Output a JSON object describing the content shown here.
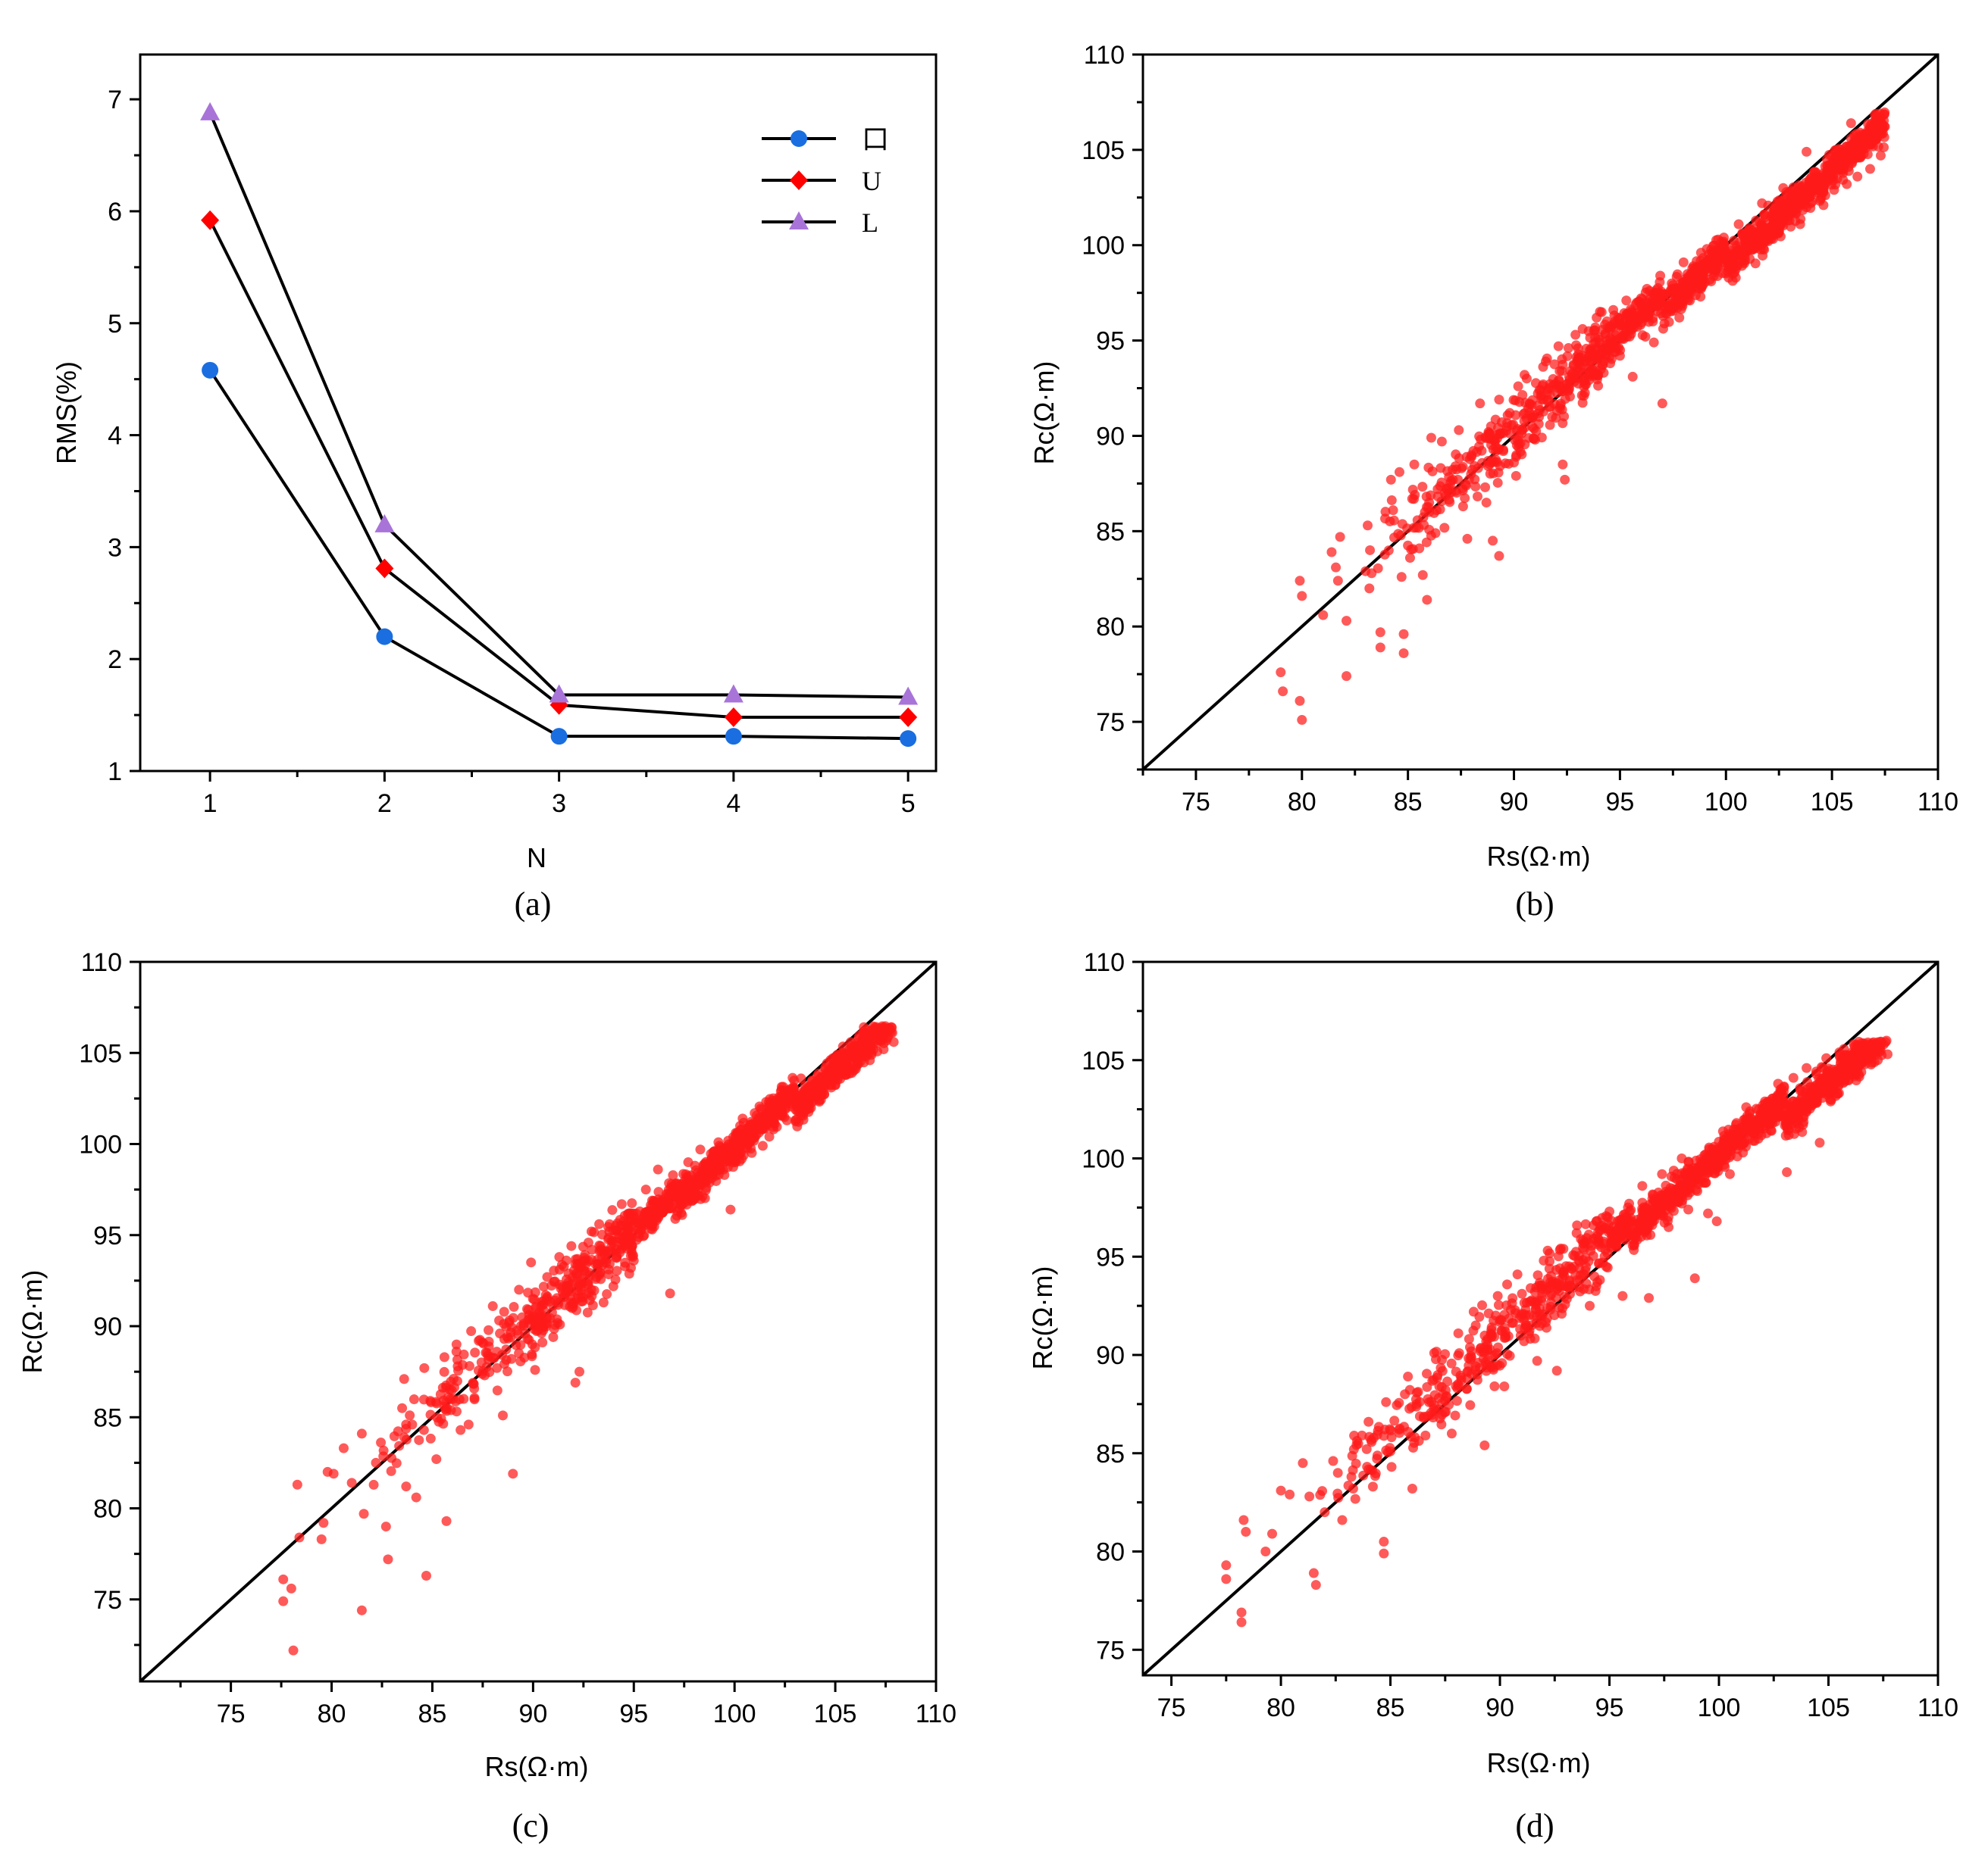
{
  "chart_data": [
    {
      "id": "a",
      "type": "line",
      "caption": "(a)",
      "xlabel": "N",
      "ylabel": "RMS(%)",
      "x": [
        1,
        2,
        3,
        4,
        5
      ],
      "xlim": [
        0.6,
        5.16
      ],
      "ylim": [
        1,
        7.4
      ],
      "xticks": [
        1,
        2,
        3,
        4,
        5
      ],
      "yticks": [
        1,
        2,
        3,
        4,
        5,
        6,
        7
      ],
      "legend_position": "top-right",
      "series": [
        {
          "name": "口",
          "marker": "circle",
          "color": "#1a6ee0",
          "values": [
            4.58,
            2.2,
            1.31,
            1.31,
            1.29
          ]
        },
        {
          "name": "U",
          "marker": "diamond",
          "color": "#ff0000",
          "values": [
            5.92,
            2.81,
            1.59,
            1.48,
            1.48
          ]
        },
        {
          "name": "L",
          "marker": "triangle",
          "color": "#a874d8",
          "values": [
            6.88,
            3.2,
            1.68,
            1.68,
            1.66
          ]
        }
      ]
    },
    {
      "id": "b",
      "type": "scatter",
      "caption": "(b)",
      "xlabel": "Rs(Ω·m)",
      "ylabel": "Rc(Ω·m)",
      "xlim": [
        72.5,
        110
      ],
      "ylim": [
        72.5,
        110
      ],
      "xticks": [
        75,
        80,
        85,
        90,
        95,
        100,
        105,
        110
      ],
      "yticks": [
        75,
        80,
        85,
        90,
        95,
        100,
        105,
        110
      ],
      "reference_line": "y = x",
      "point_color": "#ff1a1a",
      "x_range": [
        79,
        107.5
      ],
      "y_range": [
        75,
        107
      ],
      "points": [
        [
          79.0,
          77.6
        ],
        [
          79.1,
          76.6
        ],
        [
          79.9,
          82.4
        ],
        [
          80.0,
          81.6
        ],
        [
          79.9,
          76.1
        ],
        [
          80.0,
          75.1
        ],
        [
          81.0,
          80.6
        ],
        [
          81.4,
          83.9
        ],
        [
          81.6,
          83.1
        ],
        [
          81.7,
          82.4
        ],
        [
          81.8,
          84.7
        ],
        [
          82.1,
          77.4
        ],
        [
          82.1,
          80.3
        ],
        [
          83.0,
          82.9
        ],
        [
          83.1,
          85.3
        ],
        [
          83.7,
          79.7
        ],
        [
          83.7,
          78.9
        ],
        [
          84.2,
          87.7
        ],
        [
          84.3,
          86.1
        ],
        [
          84.6,
          88.1
        ],
        [
          84.7,
          82.6
        ],
        [
          84.8,
          79.6
        ],
        [
          84.8,
          78.6
        ],
        [
          85.1,
          83.6
        ],
        [
          85.2,
          86.7
        ],
        [
          85.3,
          88.5
        ],
        [
          85.7,
          82.7
        ],
        [
          85.8,
          86.0
        ],
        [
          85.9,
          81.4
        ],
        [
          86.0,
          86.5
        ],
        [
          86.1,
          89.9
        ],
        [
          86.3,
          84.9
        ],
        [
          86.6,
          89.7
        ],
        [
          87.0,
          87.5
        ],
        [
          87.4,
          90.3
        ],
        [
          87.6,
          86.3
        ],
        [
          87.8,
          84.6
        ],
        [
          88.0,
          88.9
        ],
        [
          88.4,
          91.7
        ],
        [
          88.7,
          86.5
        ],
        [
          88.8,
          90.2
        ],
        [
          89.0,
          84.5
        ],
        [
          89.3,
          91.9
        ],
        [
          89.3,
          83.7
        ],
        [
          89.5,
          89.2
        ],
        [
          89.8,
          91.2
        ],
        [
          90.0,
          88.6
        ],
        [
          90.1,
          87.9
        ],
        [
          90.2,
          92.6
        ],
        [
          90.4,
          90.3
        ],
        [
          90.5,
          93.2
        ],
        [
          90.9,
          91.1
        ],
        [
          91.0,
          89.8
        ],
        [
          91.2,
          92.4
        ],
        [
          91.5,
          93.9
        ],
        [
          91.8,
          91.0
        ],
        [
          92.1,
          94.7
        ],
        [
          92.3,
          88.5
        ],
        [
          92.4,
          87.7
        ],
        [
          92.6,
          93.1
        ],
        [
          92.9,
          95.3
        ],
        [
          93.3,
          92.1
        ],
        [
          93.5,
          94.1
        ],
        [
          93.9,
          96.2
        ],
        [
          94.1,
          93.5
        ],
        [
          94.4,
          95.0
        ],
        [
          94.8,
          95.9
        ],
        [
          95.0,
          94.2
        ],
        [
          95.3,
          97.1
        ],
        [
          95.5,
          95.6
        ],
        [
          95.6,
          93.1
        ],
        [
          95.9,
          96.5
        ],
        [
          96.2,
          95.2
        ],
        [
          96.4,
          97.6
        ],
        [
          96.6,
          94.9
        ],
        [
          96.9,
          98.4
        ],
        [
          97.0,
          91.7
        ],
        [
          97.2,
          96.4
        ],
        [
          97.5,
          97.9
        ],
        [
          97.8,
          96.2
        ],
        [
          98.0,
          99.1
        ],
        [
          98.3,
          97.1
        ],
        [
          98.6,
          98.6
        ],
        [
          98.8,
          97.3
        ],
        [
          99.1,
          99.8
        ],
        [
          99.3,
          98.1
        ],
        [
          99.6,
          98.9
        ],
        [
          99.9,
          100.4
        ],
        [
          100.1,
          98.6
        ],
        [
          100.4,
          99.5
        ],
        [
          100.6,
          101.1
        ],
        [
          100.9,
          99.2
        ],
        [
          101.2,
          100.8
        ],
        [
          101.4,
          99.9
        ],
        [
          101.7,
          102.2
        ],
        [
          102.0,
          100.4
        ],
        [
          102.2,
          101.6
        ],
        [
          102.5,
          100.7
        ],
        [
          102.7,
          103.0
        ],
        [
          103.0,
          101.3
        ],
        [
          103.3,
          102.2
        ],
        [
          103.5,
          101.1
        ],
        [
          103.8,
          104.9
        ],
        [
          104.0,
          102.2
        ],
        [
          104.3,
          103.4
        ],
        [
          104.6,
          102.1
        ],
        [
          104.8,
          103.8
        ],
        [
          105.1,
          102.9
        ],
        [
          105.4,
          104.5
        ],
        [
          105.7,
          103.2
        ],
        [
          105.9,
          106.4
        ],
        [
          106.2,
          103.6
        ],
        [
          106.5,
          104.8
        ],
        [
          106.8,
          104.0
        ],
        [
          107.1,
          105.6
        ],
        [
          107.3,
          104.7
        ]
      ]
    },
    {
      "id": "c",
      "type": "scatter",
      "caption": "(c)",
      "xlabel": "Rs(Ω·m)",
      "ylabel": "Rc(Ω·m)",
      "xlim": [
        70.5,
        110
      ],
      "ylim": [
        70.5,
        110
      ],
      "xticks": [
        75,
        80,
        85,
        90,
        95,
        100,
        105,
        110
      ],
      "yticks": [
        75,
        80,
        85,
        90,
        95,
        100,
        105,
        110
      ],
      "reference_line": "y = x",
      "point_color": "#ff1a1a",
      "x_range": [
        77.5,
        108
      ],
      "y_range": [
        72,
        106.5
      ],
      "points": [
        [
          77.6,
          76.1
        ],
        [
          77.6,
          74.9
        ],
        [
          78.0,
          75.6
        ],
        [
          78.1,
          72.2
        ],
        [
          78.3,
          81.3
        ],
        [
          78.4,
          78.4
        ],
        [
          79.5,
          78.3
        ],
        [
          79.6,
          79.2
        ],
        [
          79.8,
          82.0
        ],
        [
          80.1,
          81.9
        ],
        [
          80.6,
          83.3
        ],
        [
          81.0,
          81.4
        ],
        [
          81.5,
          84.1
        ],
        [
          81.5,
          74.4
        ],
        [
          81.6,
          79.7
        ],
        [
          82.2,
          82.5
        ],
        [
          82.7,
          79.0
        ],
        [
          82.8,
          77.2
        ],
        [
          83.5,
          85.5
        ],
        [
          83.6,
          87.1
        ],
        [
          83.7,
          81.2
        ],
        [
          84.0,
          84.6
        ],
        [
          84.2,
          80.6
        ],
        [
          84.6,
          87.7
        ],
        [
          84.7,
          76.3
        ],
        [
          84.9,
          85.9
        ],
        [
          85.2,
          82.7
        ],
        [
          85.6,
          88.3
        ],
        [
          85.7,
          79.3
        ],
        [
          85.9,
          86.0
        ],
        [
          86.2,
          89.0
        ],
        [
          86.4,
          84.3
        ],
        [
          86.8,
          84.6
        ],
        [
          87.3,
          89.2
        ],
        [
          87.6,
          87.3
        ],
        [
          88.0,
          91.1
        ],
        [
          88.2,
          88.6
        ],
        [
          88.5,
          85.1
        ],
        [
          88.8,
          90.2
        ],
        [
          89.0,
          81.9
        ],
        [
          89.3,
          92.0
        ],
        [
          89.6,
          89.6
        ],
        [
          89.9,
          93.5
        ],
        [
          90.1,
          87.6
        ],
        [
          90.4,
          91.1
        ],
        [
          90.7,
          92.7
        ],
        [
          91.0,
          89.4
        ],
        [
          91.3,
          93.8
        ],
        [
          91.5,
          91.6
        ],
        [
          91.9,
          94.4
        ],
        [
          92.1,
          86.9
        ],
        [
          92.3,
          87.5
        ],
        [
          92.6,
          92.9
        ],
        [
          92.9,
          95.2
        ],
        [
          93.2,
          93.4
        ],
        [
          93.5,
          91.3
        ],
        [
          93.8,
          95.6
        ],
        [
          94.1,
          94.2
        ],
        [
          94.4,
          96.7
        ],
        [
          94.7,
          95.1
        ],
        [
          95.0,
          93.6
        ],
        [
          95.3,
          96.3
        ],
        [
          95.6,
          97.5
        ],
        [
          95.9,
          95.5
        ],
        [
          96.2,
          98.6
        ],
        [
          96.5,
          96.7
        ],
        [
          96.8,
          91.8
        ],
        [
          97.1,
          97.8
        ],
        [
          97.4,
          96.1
        ],
        [
          97.7,
          99.0
        ],
        [
          98.0,
          97.1
        ],
        [
          98.3,
          99.7
        ],
        [
          98.6,
          97.6
        ],
        [
          98.9,
          98.8
        ],
        [
          99.2,
          100.1
        ],
        [
          99.5,
          98.3
        ],
        [
          99.8,
          96.4
        ],
        [
          100.1,
          99.6
        ],
        [
          100.4,
          101.4
        ],
        [
          100.7,
          100.1
        ],
        [
          101.0,
          101.7
        ],
        [
          101.4,
          99.9
        ],
        [
          101.7,
          102.3
        ],
        [
          102.0,
          101.1
        ],
        [
          102.3,
          102.9
        ],
        [
          102.6,
          101.3
        ],
        [
          102.9,
          102.4
        ],
        [
          103.3,
          103.6
        ],
        [
          103.6,
          101.9
        ],
        [
          103.9,
          103.2
        ],
        [
          104.2,
          102.4
        ],
        [
          104.5,
          104.2
        ],
        [
          104.8,
          103.1
        ],
        [
          105.1,
          104.9
        ],
        [
          105.5,
          103.8
        ],
        [
          105.8,
          105.4
        ],
        [
          106.1,
          104.4
        ],
        [
          106.4,
          105.9
        ],
        [
          106.8,
          104.9
        ],
        [
          107.1,
          106.1
        ],
        [
          107.4,
          105.2
        ],
        [
          107.7,
          106.3
        ],
        [
          107.9,
          105.6
        ]
      ]
    },
    {
      "id": "d",
      "type": "scatter",
      "caption": "(d)",
      "xlabel": "Rs(Ω·m)",
      "ylabel": "Rc(Ω·m)",
      "xlim": [
        73.7,
        110
      ],
      "ylim": [
        73.7,
        110
      ],
      "xticks": [
        75,
        80,
        85,
        90,
        95,
        100,
        105,
        110
      ],
      "yticks": [
        75,
        80,
        85,
        90,
        95,
        100,
        105,
        110
      ],
      "reference_line": "y = x",
      "point_color": "#ff1a1a",
      "x_range": [
        77.5,
        108
      ],
      "y_range": [
        76.5,
        106
      ],
      "points": [
        [
          77.5,
          79.3
        ],
        [
          77.5,
          78.6
        ],
        [
          78.2,
          76.9
        ],
        [
          78.2,
          76.4
        ],
        [
          78.3,
          81.6
        ],
        [
          78.4,
          81.0
        ],
        [
          79.3,
          80.0
        ],
        [
          79.6,
          80.9
        ],
        [
          80.0,
          83.1
        ],
        [
          80.4,
          82.9
        ],
        [
          81.0,
          84.5
        ],
        [
          81.3,
          82.8
        ],
        [
          81.5,
          78.9
        ],
        [
          81.6,
          78.3
        ],
        [
          82.0,
          82.0
        ],
        [
          82.6,
          84.0
        ],
        [
          82.8,
          81.6
        ],
        [
          83.3,
          83.2
        ],
        [
          83.7,
          85.9
        ],
        [
          84.0,
          86.6
        ],
        [
          84.2,
          83.3
        ],
        [
          84.7,
          80.5
        ],
        [
          84.7,
          79.9
        ],
        [
          84.8,
          87.6
        ],
        [
          85.0,
          85.1
        ],
        [
          85.4,
          86.2
        ],
        [
          85.8,
          88.9
        ],
        [
          86.0,
          83.2
        ],
        [
          86.2,
          87.5
        ],
        [
          86.6,
          85.9
        ],
        [
          87.0,
          90.1
        ],
        [
          87.4,
          88.0
        ],
        [
          87.8,
          86.0
        ],
        [
          88.1,
          91.1
        ],
        [
          88.5,
          88.8
        ],
        [
          88.8,
          92.2
        ],
        [
          89.0,
          89.6
        ],
        [
          89.3,
          85.4
        ],
        [
          89.6,
          90.9
        ],
        [
          89.9,
          93.0
        ],
        [
          90.2,
          88.4
        ],
        [
          90.5,
          92.3
        ],
        [
          90.8,
          94.1
        ],
        [
          91.1,
          90.7
        ],
        [
          91.4,
          93.4
        ],
        [
          91.7,
          89.7
        ],
        [
          92.0,
          94.8
        ],
        [
          92.3,
          92.3
        ],
        [
          92.6,
          89.2
        ],
        [
          92.9,
          95.4
        ],
        [
          93.2,
          93.1
        ],
        [
          93.5,
          96.2
        ],
        [
          93.8,
          94.1
        ],
        [
          94.1,
          92.5
        ],
        [
          94.4,
          96.8
        ],
        [
          94.7,
          94.7
        ],
        [
          95.0,
          97.3
        ],
        [
          95.3,
          95.6
        ],
        [
          95.6,
          93.0
        ],
        [
          95.9,
          97.7
        ],
        [
          96.2,
          96.1
        ],
        [
          96.5,
          98.6
        ],
        [
          96.8,
          92.9
        ],
        [
          97.1,
          97.1
        ],
        [
          97.4,
          99.2
        ],
        [
          97.7,
          96.5
        ],
        [
          98.0,
          98.3
        ],
        [
          98.3,
          100.0
        ],
        [
          98.6,
          97.4
        ],
        [
          98.9,
          93.9
        ],
        [
          99.2,
          99.0
        ],
        [
          99.5,
          97.2
        ],
        [
          99.9,
          96.8
        ],
        [
          100.2,
          100.6
        ],
        [
          100.5,
          99.2
        ],
        [
          100.8,
          101.8
        ],
        [
          101.1,
          100.3
        ],
        [
          101.4,
          102.3
        ],
        [
          101.8,
          101.0
        ],
        [
          102.1,
          102.9
        ],
        [
          102.4,
          101.4
        ],
        [
          102.7,
          103.8
        ],
        [
          103.0,
          102.2
        ],
        [
          103.1,
          99.3
        ],
        [
          103.4,
          104.1
        ],
        [
          103.7,
          102.6
        ],
        [
          104.0,
          104.6
        ],
        [
          104.3,
          103.0
        ],
        [
          104.6,
          100.8
        ],
        [
          104.9,
          105.1
        ],
        [
          105.2,
          103.6
        ],
        [
          105.5,
          105.4
        ],
        [
          105.9,
          104.0
        ],
        [
          106.2,
          105.7
        ],
        [
          106.5,
          104.4
        ],
        [
          106.8,
          105.9
        ],
        [
          107.1,
          104.9
        ],
        [
          107.4,
          105.8
        ],
        [
          107.7,
          105.3
        ]
      ]
    }
  ]
}
